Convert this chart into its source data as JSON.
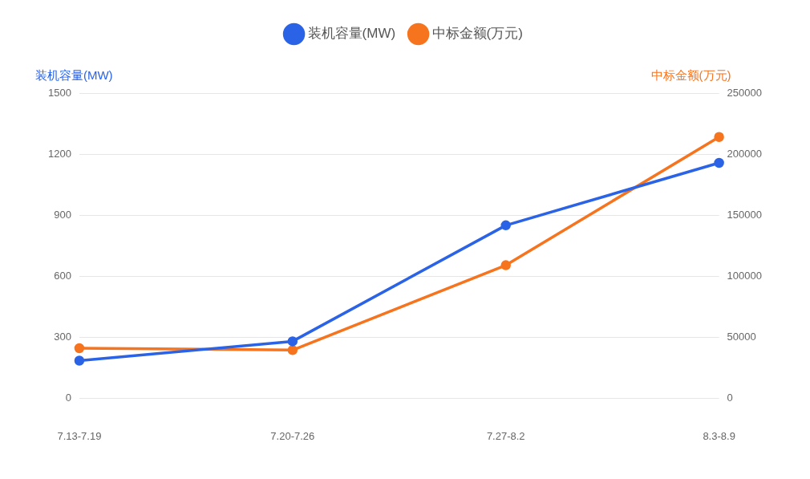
{
  "chart_data": {
    "type": "line",
    "categories": [
      "7.13-7.19",
      "7.20-7.26",
      "7.27-8.2",
      "8.3-8.9"
    ],
    "series": [
      {
        "name": "装机容量(MW)",
        "color": "#2b63e6",
        "values": [
          185,
          280,
          850,
          1157
        ]
      },
      {
        "name": "中标金额(万元)",
        "color": "#f7741f",
        "values": [
          41000,
          39500,
          109000,
          214000
        ],
        "axis": "y2"
      }
    ],
    "ylabel": "装机容量(MW)",
    "y2label": "中标金额(万元)",
    "ylim": [
      0,
      1500
    ],
    "yticks": [
      0,
      300,
      600,
      900,
      1200,
      1500
    ],
    "y2lim": [
      0,
      250000
    ],
    "y2ticks": [
      0,
      50000,
      100000,
      150000,
      200000,
      250000
    ],
    "grid": "y",
    "legend": "top",
    "marker": "circle",
    "line_style": "solid"
  }
}
